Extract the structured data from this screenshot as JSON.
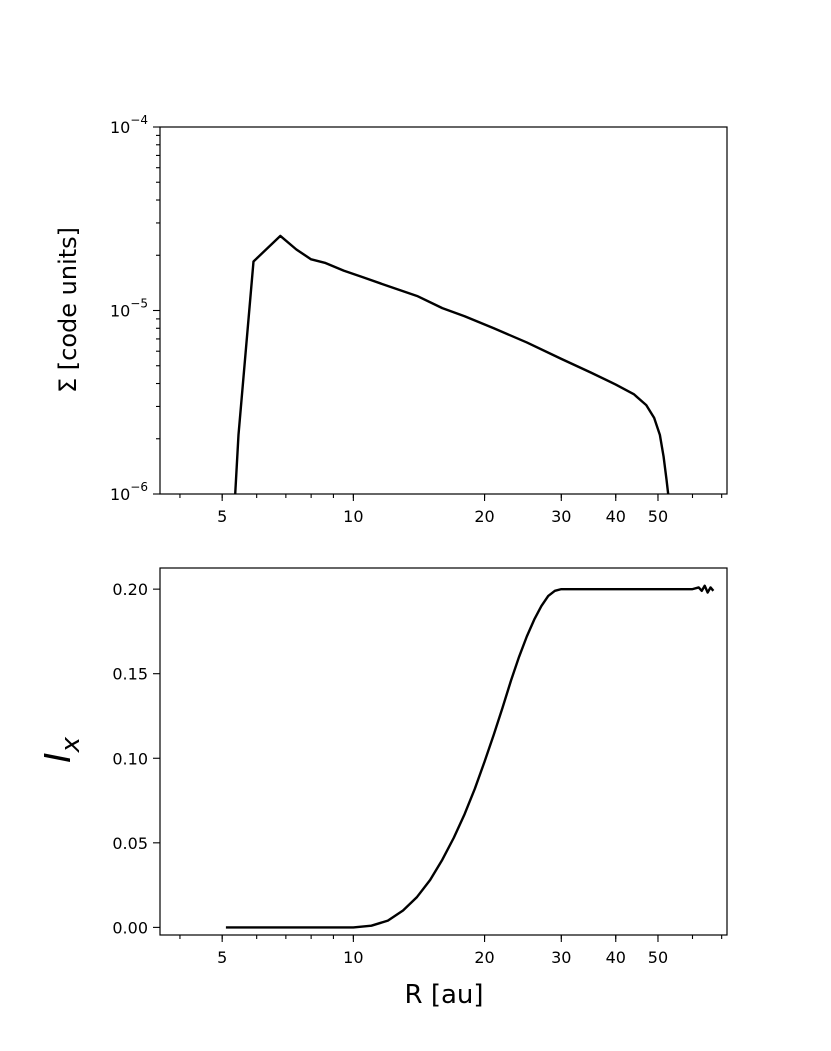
{
  "chart_data": [
    {
      "type": "line",
      "xscale": "log",
      "yscale": "log",
      "xlim": [
        3.6,
        72
      ],
      "ylim": [
        1e-06,
        0.0001
      ],
      "xlabel": "",
      "ylabel": "Σ [code units]",
      "xtick_labels": [
        "5",
        "10",
        "20",
        "30",
        "40",
        "50"
      ],
      "ytick_labels": [
        {
          "value": 1e-06,
          "base": "10",
          "exp": "−6"
        },
        {
          "value": 1e-05,
          "base": "10",
          "exp": "−5"
        },
        {
          "value": 0.0001,
          "base": "10",
          "exp": "−4"
        }
      ],
      "grid": false,
      "series": [
        {
          "color": "#000000",
          "x": [
            5.35,
            5.45,
            5.9,
            6.8,
            7.4,
            8.0,
            8.6,
            9.5,
            10.5,
            12.0,
            14.0,
            16.0,
            18.0,
            21.0,
            25.0,
            30.0,
            35.0,
            40.0,
            44.0,
            47.0,
            49.0,
            50.5,
            51.5,
            52.3,
            52.9
          ],
          "y": [
            9.5e-07,
            2.1e-06,
            1.85e-05,
            2.55e-05,
            2.15e-05,
            1.9e-05,
            1.82e-05,
            1.65e-05,
            1.52e-05,
            1.36e-05,
            1.2e-05,
            1.03e-05,
            9.3e-06,
            8e-06,
            6.7e-06,
            5.45e-06,
            4.6e-06,
            3.95e-06,
            3.5e-06,
            3.05e-06,
            2.6e-06,
            2.1e-06,
            1.6e-06,
            1.2e-06,
            9.5e-07
          ]
        }
      ]
    },
    {
      "type": "line",
      "xscale": "log",
      "yscale": "linear",
      "xlim": [
        3.6,
        72
      ],
      "ylim": [
        -0.0045,
        0.2125
      ],
      "xlabel": "R [au]",
      "ylabel": "I",
      "ylabel_subscript": "x",
      "xtick_labels": [
        "5",
        "10",
        "20",
        "30",
        "40",
        "50"
      ],
      "ytick_labels": [
        "0.00",
        "0.05",
        "0.10",
        "0.15",
        "0.20"
      ],
      "grid": false,
      "series": [
        {
          "color": "#000000",
          "x": [
            5.1,
            6.0,
            8.0,
            10.0,
            11.0,
            12.0,
            13.0,
            14.0,
            15.0,
            16.0,
            17.0,
            18.0,
            19.0,
            20.0,
            21.0,
            22.0,
            23.0,
            24.0,
            25.0,
            26.0,
            27.0,
            28.0,
            29.0,
            30.0,
            35.0,
            40.0,
            50.0,
            60.0,
            62.0,
            63.0,
            64.0,
            65.0,
            66.0,
            67.0
          ],
          "y": [
            0.0,
            0.0,
            0.0,
            0.0,
            0.001,
            0.004,
            0.01,
            0.018,
            0.028,
            0.04,
            0.053,
            0.067,
            0.082,
            0.098,
            0.114,
            0.13,
            0.146,
            0.16,
            0.172,
            0.182,
            0.19,
            0.196,
            0.199,
            0.2,
            0.2,
            0.2,
            0.2,
            0.2,
            0.201,
            0.199,
            0.202,
            0.198,
            0.201,
            0.199
          ]
        }
      ]
    }
  ]
}
